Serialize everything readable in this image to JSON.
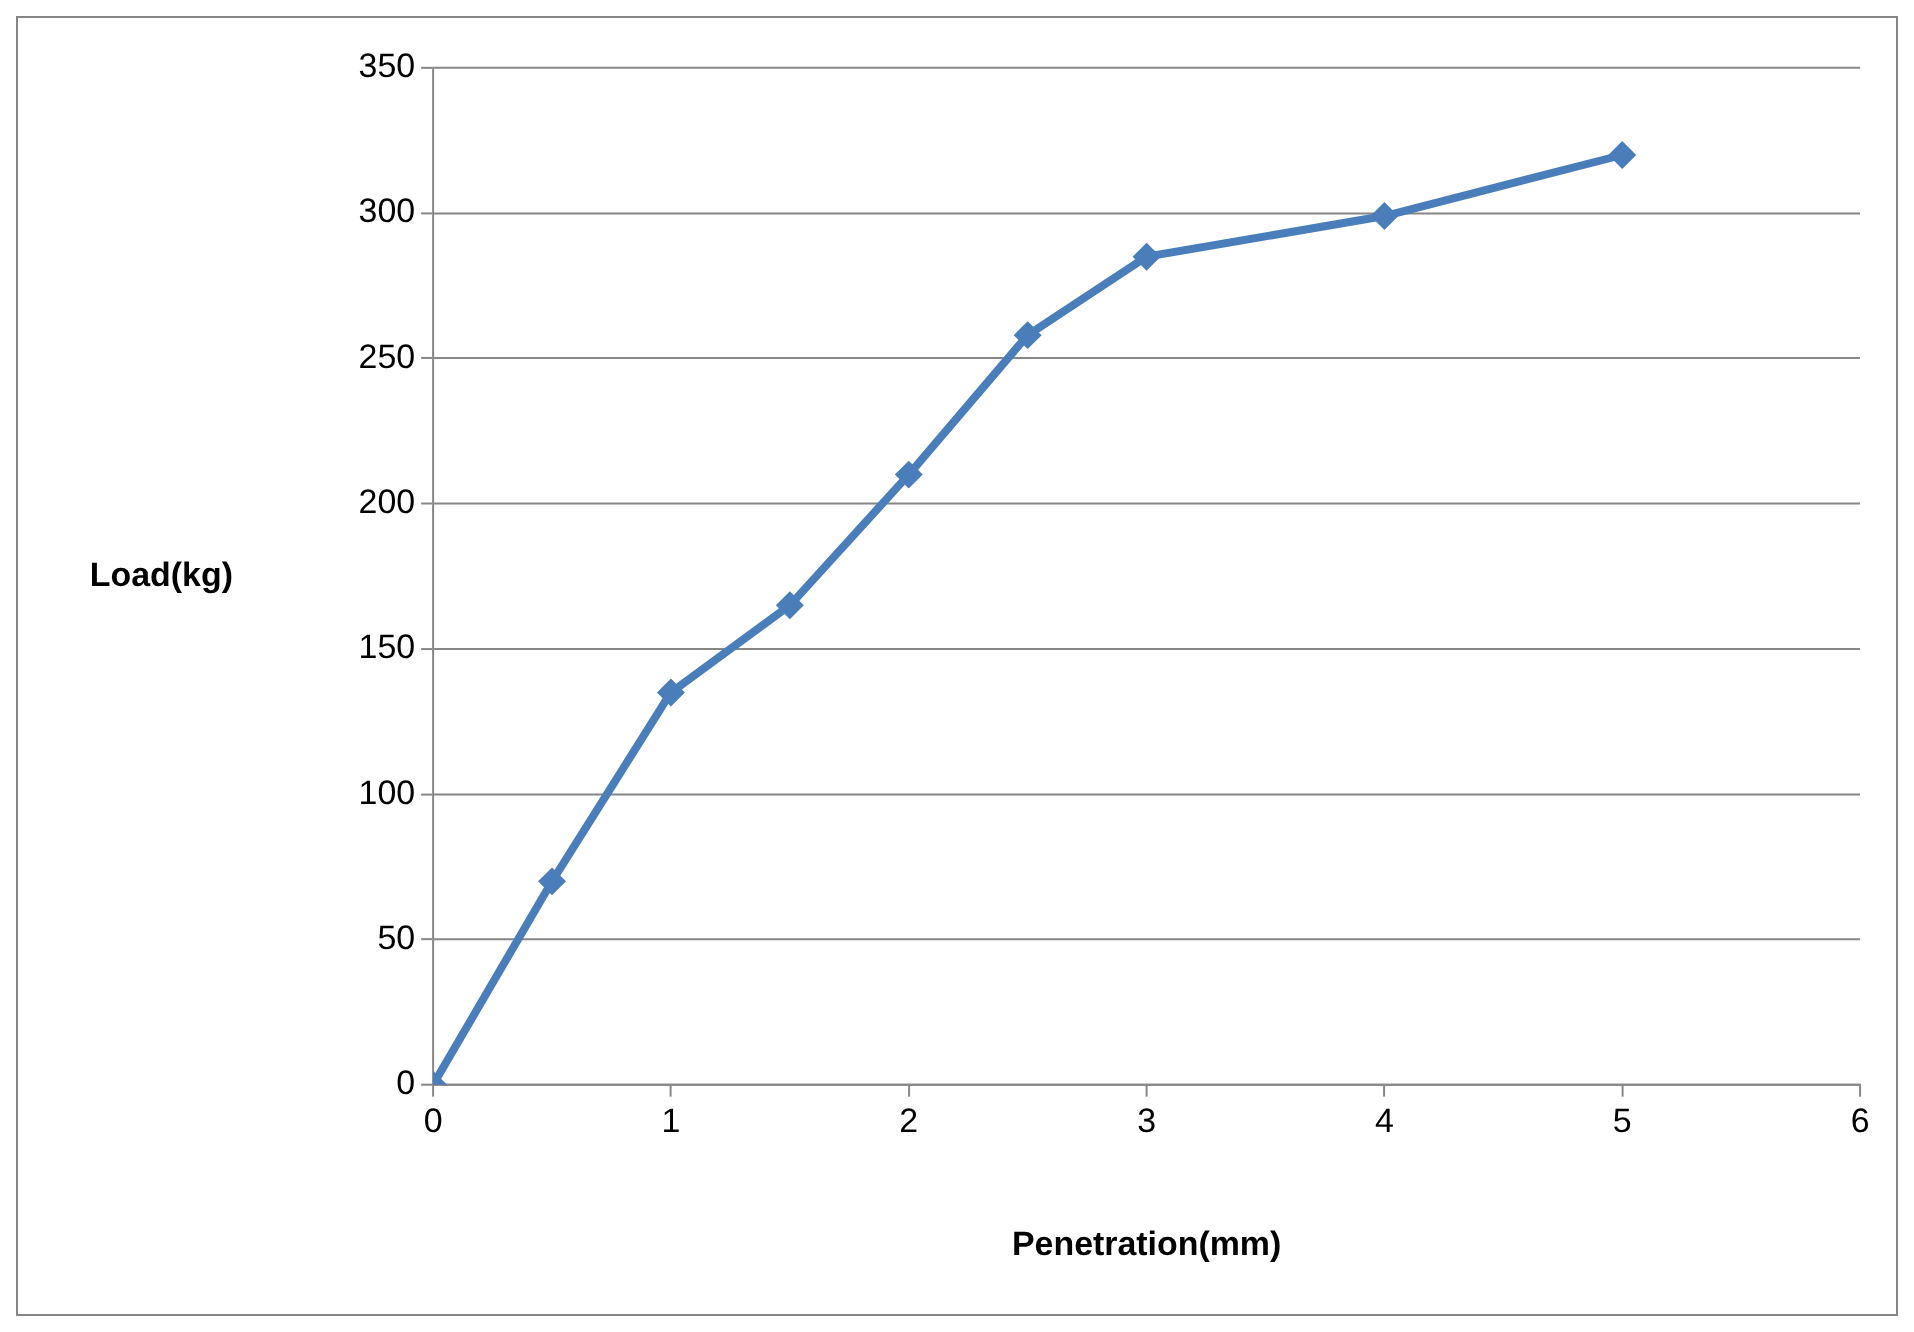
{
  "chart_data": {
    "type": "line",
    "xlabel": "Penetration(mm)",
    "ylabel": "Load(kg)",
    "x": [
      0,
      0.5,
      1,
      1.5,
      2,
      2.5,
      3,
      4,
      5
    ],
    "series": [
      {
        "color": "#4a7ebb",
        "values": [
          0,
          70,
          135,
          165,
          210,
          258,
          285,
          299,
          320
        ]
      }
    ],
    "xlim": [
      0,
      6
    ],
    "xticks": [
      0,
      1,
      2,
      3,
      4,
      5,
      6
    ],
    "ylim": [
      0,
      350
    ],
    "yticks": [
      0,
      50,
      100,
      150,
      200,
      250,
      300,
      350
    ],
    "grid": "y",
    "legend": false,
    "marker": "diamond",
    "line_style": "solid"
  }
}
